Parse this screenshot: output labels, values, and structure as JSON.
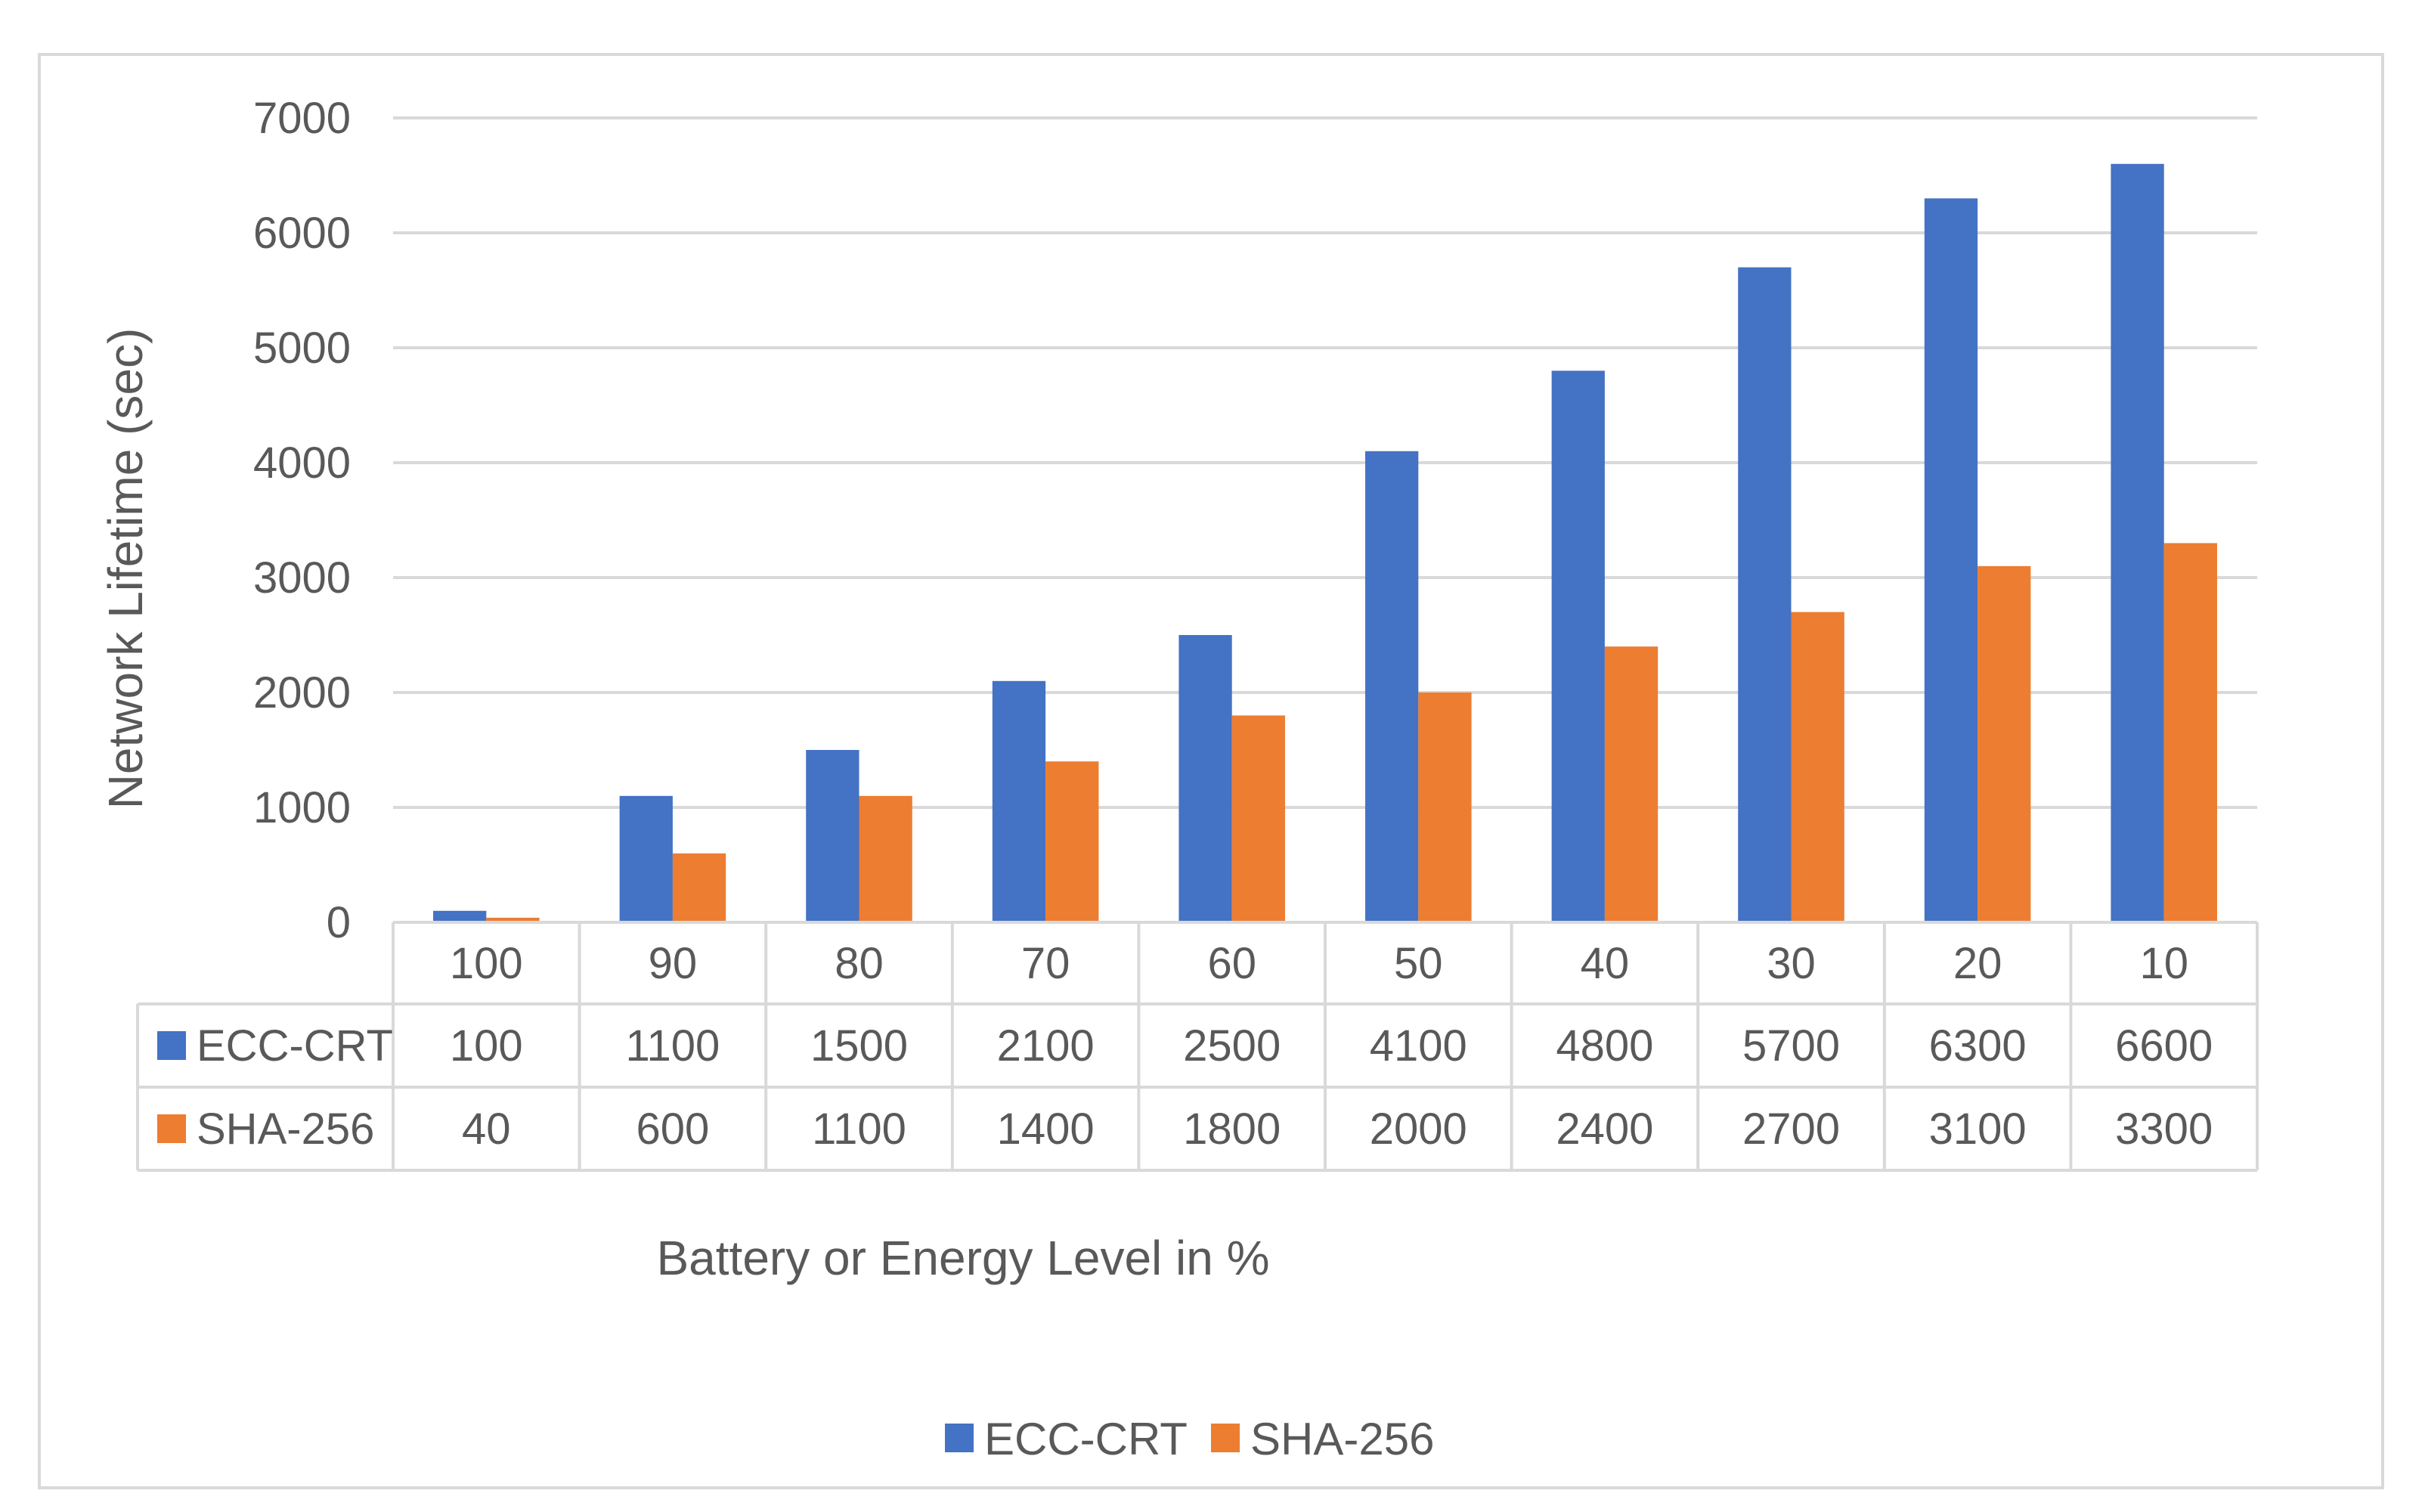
{
  "chart_data": {
    "type": "bar",
    "title": "",
    "xlabel": "Battery or Energy Level in %",
    "ylabel": "Network  Lifetime (sec)",
    "categories": [
      "100",
      "90",
      "80",
      "70",
      "60",
      "50",
      "40",
      "30",
      "20",
      "10"
    ],
    "series": [
      {
        "name": "ECC-CRT",
        "color": "#4472c4",
        "values": [
          100,
          1100,
          1500,
          2100,
          2500,
          4100,
          4800,
          5700,
          6300,
          6600
        ]
      },
      {
        "name": "SHA-256",
        "color": "#ed7d31",
        "values": [
          40,
          600,
          1100,
          1400,
          1800,
          2000,
          2400,
          2700,
          3100,
          3300
        ]
      }
    ],
    "ylim": [
      0,
      7000
    ],
    "yticks": [
      0,
      1000,
      2000,
      3000,
      4000,
      5000,
      6000,
      7000
    ],
    "grid": true,
    "legend": "bottom",
    "data_table": true
  }
}
